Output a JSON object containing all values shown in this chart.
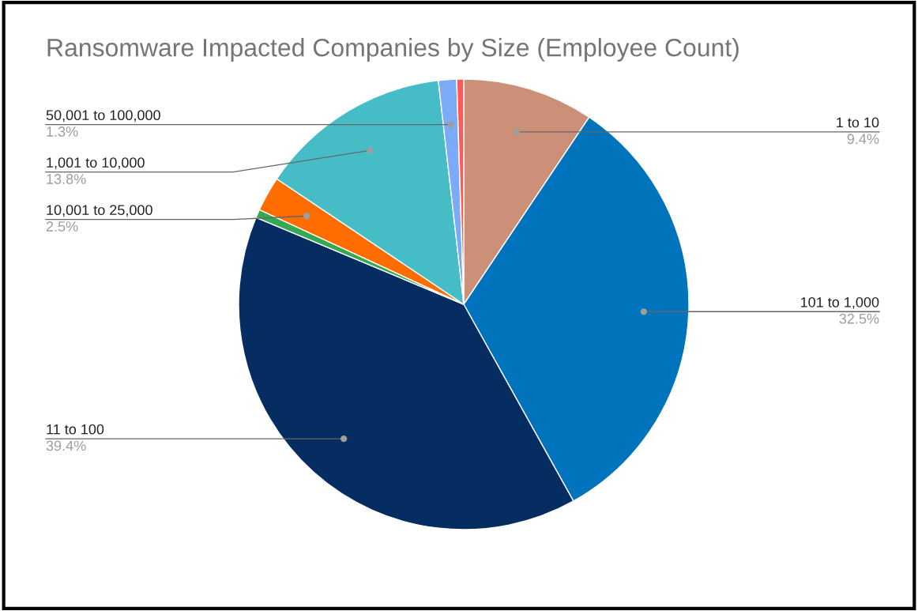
{
  "chart_data": {
    "type": "pie",
    "title": "Ransomware Impacted Companies by Size (Employee Count)",
    "categories": [
      "1 to 10",
      "101 to 1,000",
      "11 to 100",
      null,
      "10,001 to 25,000",
      "1,001 to 10,000",
      "50,001 to 100,000",
      null
    ],
    "values": [
      9.4,
      32.5,
      39.4,
      0.6,
      2.5,
      13.8,
      1.3,
      0.5
    ],
    "value_labels": [
      "9.4%",
      "32.5%",
      "39.4%",
      null,
      "2.5%",
      "13.8%",
      "1.3%",
      null
    ],
    "colors": [
      "#cc8f78",
      "#0073bd",
      "#062d62",
      "#34a853",
      "#ff6d01",
      "#46bdc6",
      "#7baaf7",
      "#ff5a5a"
    ],
    "legend": false
  }
}
